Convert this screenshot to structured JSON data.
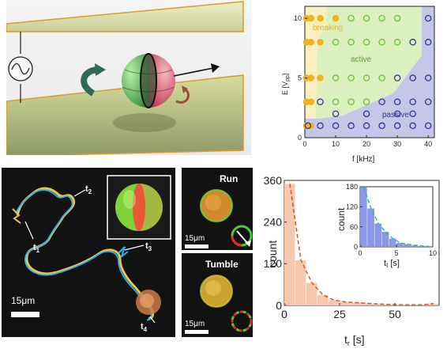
{
  "phase": {
    "y_label": "E  [V",
    "y_label_sub": "pp",
    "y_label_close": "]",
    "x_label": "f  [kHz]",
    "x_ticks": [
      "0",
      "10",
      "20",
      "30",
      "40"
    ],
    "y_ticks": [
      "0",
      "5",
      "10"
    ],
    "regions": {
      "breaking": "breaking",
      "active": "active",
      "passive": "passive"
    },
    "colors": {
      "breaking": "#f2b21b",
      "active": "#6cc23a",
      "passive": "#33339a"
    }
  },
  "chart_data": [
    {
      "type": "scatter",
      "xlabel": "f [kHz]",
      "ylabel": "E [Vpp]",
      "xlim": [
        0,
        42
      ],
      "ylim": [
        0,
        11
      ],
      "series": [
        {
          "name": "breaking",
          "x": [
            0.5,
            0.5,
            0.5,
            0.5,
            0.5,
            2,
            2,
            2,
            2,
            2,
            5,
            5,
            5,
            10
          ],
          "y": [
            10,
            8,
            5,
            3,
            1,
            10,
            8,
            5,
            3,
            1,
            10,
            8,
            5,
            10
          ]
        },
        {
          "name": "active",
          "x": [
            10,
            10,
            10,
            15,
            15,
            15,
            15,
            20,
            20,
            20,
            20,
            25,
            25,
            25,
            30,
            30
          ],
          "y": [
            8,
            5,
            3,
            10,
            8,
            5,
            3,
            10,
            8,
            5,
            3,
            10,
            8,
            5,
            10,
            8
          ]
        },
        {
          "name": "passive",
          "x": [
            1,
            5,
            5,
            10,
            10,
            15,
            20,
            20,
            25,
            25,
            30,
            30,
            30,
            30,
            35,
            35,
            35,
            35,
            35,
            40,
            40,
            40,
            40,
            40
          ],
          "y": [
            1,
            3,
            1,
            1,
            2,
            1,
            1,
            2,
            3,
            1,
            5,
            3,
            2,
            1,
            8,
            5,
            3,
            2,
            1,
            10,
            8,
            5,
            3,
            1
          ]
        }
      ],
      "grid": false
    },
    {
      "type": "bar",
      "xlabel": "t_r [s]",
      "ylabel": "count",
      "xlim": [
        0,
        70
      ],
      "ylim": [
        0,
        360
      ],
      "x_ticks": [
        "0",
        "25",
        "50"
      ],
      "y_ticks": [
        "0",
        "120",
        "240",
        "360"
      ],
      "bin_width": 5,
      "categories": [
        "0-5",
        "5-10",
        "10-15",
        "15-20",
        "20-25",
        "25-30",
        "30-35",
        "35-40",
        "40-45",
        "45-50",
        "50-55",
        "55-60",
        "60-65",
        "65-70"
      ],
      "values": [
        350,
        130,
        65,
        30,
        15,
        10,
        8,
        6,
        4,
        3,
        2,
        2,
        2,
        5
      ],
      "fit": "exponential decay"
    },
    {
      "type": "bar",
      "xlabel": "t_t [s]",
      "ylabel": "count",
      "xlim": [
        0,
        10
      ],
      "ylim": [
        0,
        180
      ],
      "x_ticks": [
        "0",
        "5",
        "10"
      ],
      "y_ticks": [
        "0",
        "60",
        "120",
        "180"
      ],
      "bin_width": 1,
      "categories": [
        "0-1",
        "1-2",
        "2-3",
        "3-4",
        "4-5",
        "5-6",
        "6-7",
        "7-8",
        "8-9",
        "9-10"
      ],
      "values": [
        178,
        115,
        70,
        45,
        25,
        12,
        8,
        5,
        3,
        2
      ],
      "fit": "exponential decay"
    }
  ],
  "hist": {
    "y_label": "count",
    "x_label": "t",
    "x_label_sub": "r",
    "x_label_unit": " [s]",
    "y_ticks": [
      "0",
      "120",
      "360"
    ],
    "x_ticks": [
      "0",
      "25",
      "50"
    ],
    "colors": {
      "main_bars": "#f7c8ad",
      "fit": "#d9541f",
      "inset_bars": "#8b98e8",
      "inset_fit": "#30b6a6"
    }
  },
  "inset": {
    "y_label": "count",
    "x_label": "t",
    "x_label_sub": "t",
    "x_label_unit": " [s]",
    "y_ticks": [
      "0",
      "60",
      "120",
      "180"
    ],
    "x_ticks": [
      "0",
      "5",
      "10"
    ]
  },
  "traj": {
    "labels": [
      "t",
      "t",
      "t",
      "t"
    ],
    "label_subs": [
      "1",
      "2",
      "3",
      "4"
    ],
    "scale_bar": "15μm"
  },
  "run": {
    "title": "Run",
    "scale_bar": "15μm"
  },
  "tumble": {
    "title": "Tumble",
    "scale_bar": "15μm"
  }
}
